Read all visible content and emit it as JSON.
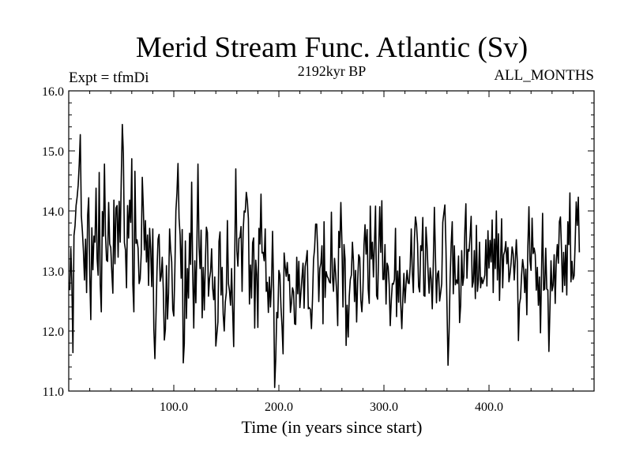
{
  "chart_data": {
    "type": "line",
    "title": "Merid Stream Func. Atlantic (Sv)",
    "subtitle": "2192kyr BP",
    "left_label": "Expt = tfmDi",
    "right_label": "ALL_MONTHS",
    "xlabel": "Time (in years since start)",
    "ylabel": "",
    "xlim": [
      0,
      500
    ],
    "ylim": [
      11.0,
      16.0
    ],
    "x_ticks": [
      100,
      200,
      300,
      400
    ],
    "x_tick_labels": [
      "100.0",
      "200.0",
      "300.0",
      "400.0"
    ],
    "y_ticks": [
      11,
      12,
      13,
      14,
      15,
      16
    ],
    "y_tick_labels": [
      "11.0",
      "12.0",
      "13.0",
      "14.0",
      "15.0",
      "16.0"
    ],
    "series": [
      {
        "name": "Merid Stream Func. Atlantic",
        "color": "#000000",
        "x_start": 1,
        "x_step": 1,
        "values": [
          12.68,
          13.38,
          12.79,
          11.64,
          13.59,
          13.75,
          14.09,
          14.23,
          14.43,
          14.78,
          15.27,
          13.92,
          13.66,
          13.33,
          12.85,
          13.53,
          12.64,
          13.93,
          14.22,
          12.93,
          12.19,
          13.72,
          13.02,
          13.58,
          13.48,
          14.38,
          13.21,
          12.93,
          14.64,
          12.78,
          12.32,
          13.99,
          13.58,
          14.78,
          13.61,
          13.18,
          13.16,
          14.14,
          13.45,
          13.39,
          12.98,
          12.63,
          14.18,
          13.12,
          14.05,
          14.09,
          13.23,
          14.16,
          13.48,
          14.53,
          15.44,
          14.96,
          13.47,
          13.35,
          12.72,
          14.09,
          13.55,
          14.18,
          13.81,
          14.87,
          12.78,
          12.32,
          14.66,
          13.46,
          13.52,
          13.38,
          12.79,
          12.87,
          13.29,
          14.56,
          14.06,
          13.35,
          13.84,
          13.15,
          13.6,
          12.76,
          13.71,
          13.36,
          12.74,
          13.7,
          12.04,
          11.54,
          12.21,
          13.0,
          13.53,
          13.61,
          12.83,
          12.91,
          13.23,
          12.7,
          11.85,
          12.03,
          13.09,
          12.2,
          12.63,
          13.7,
          13.35,
          13.15,
          12.36,
          12.25,
          13.0,
          14.0,
          14.3,
          14.79,
          13.88,
          13.6,
          12.88,
          13.69,
          11.47,
          11.79,
          13.5,
          12.21,
          13.04,
          12.55,
          13.63,
          13.11,
          14.48,
          12.98,
          12.05,
          13.17,
          12.47,
          13.44,
          14.78,
          13.4,
          13.04,
          13.68,
          12.22,
          13.06,
          12.35,
          13.1,
          13.73,
          13.64,
          12.58,
          12.87,
          12.99,
          13.37,
          12.71,
          12.52,
          12.9,
          11.75,
          11.95,
          12.15,
          13.49,
          13.65,
          12.6,
          13.06,
          12.28,
          12.0,
          12.48,
          12.64,
          13.84,
          12.79,
          12.67,
          12.43,
          13.04,
          12.35,
          11.74,
          13.25,
          14.7,
          13.34,
          13.08,
          13.54,
          13.56,
          13.74,
          12.66,
          13.66,
          14.0,
          13.98,
          14.31,
          14.17,
          13.87,
          12.45,
          13.1,
          12.55,
          13.47,
          13.55,
          12.05,
          13.18,
          12.94,
          12.06,
          13.71,
          13.45,
          14.28,
          13.3,
          13.31,
          13.17,
          13.7,
          12.66,
          12.81,
          12.31,
          12.9,
          12.4,
          12.77,
          13.66,
          12.7,
          11.06,
          11.53,
          12.31,
          12.22,
          13.01,
          12.93,
          12.4,
          12.08,
          11.62,
          13.3,
          13.08,
          12.91,
          13.14,
          12.84,
          12.94,
          12.31,
          12.47,
          12.72,
          12.65,
          12.12,
          12.11,
          13.23,
          12.62,
          13.16,
          12.39,
          12.64,
          12.89,
          13.13,
          12.38,
          13.07,
          13.18,
          13.34,
          12.37,
          12.39,
          12.36,
          12.04,
          12.52,
          13.19,
          13.37,
          13.78,
          13.78,
          13.32,
          12.49,
          13.04,
          13.13,
          13.42,
          12.12,
          13.82,
          12.56,
          12.99,
          12.91,
          12.88,
          12.82,
          12.8,
          13.98,
          12.9,
          12.66,
          13.21,
          12.96,
          12.65,
          12.09,
          13.66,
          13.39,
          14.14,
          13.48,
          12.4,
          13.44,
          13.2,
          11.76,
          12.43,
          11.9,
          12.58,
          12.86,
          12.93,
          13.48,
          13.16,
          12.49,
          13.01,
          12.15,
          12.83,
          13.27,
          13.22,
          12.52,
          12.32,
          12.67,
          13.42,
          13.77,
          13.28,
          13.69,
          12.7,
          12.46,
          14.08,
          13.2,
          13.48,
          12.9,
          13.48,
          14.08,
          12.59,
          12.53,
          13.34,
          14.07,
          13.31,
          14.17,
          12.86,
          12.86,
          13.44,
          12.45,
          13.13,
          13.07,
          12.77,
          12.09,
          12.51,
          12.79,
          12.78,
          12.86,
          13.71,
          12.24,
          13.0,
          12.48,
          13.24,
          12.44,
          12.04,
          12.55,
          12.96,
          12.47,
          12.77,
          13.01,
          12.8,
          12.79,
          13.08,
          13.7,
          12.99,
          12.64,
          13.54,
          13.9,
          13.77,
          13.45,
          12.74,
          12.65,
          13.42,
          13.34,
          13.89,
          12.59,
          12.58,
          13.73,
          13.43,
          12.99,
          12.63,
          13.05,
          12.86,
          12.37,
          13.14,
          14.06,
          13.26,
          12.47,
          12.95,
          13.0,
          12.5,
          12.64,
          12.79,
          13.81,
          13.96,
          14.1,
          13.4,
          12.41,
          11.43,
          11.98,
          12.88,
          13.45,
          13.82,
          12.62,
          13.42,
          12.77,
          12.85,
          12.79,
          13.25,
          12.14,
          12.43,
          13.34,
          12.76,
          12.91,
          13.67,
          14.12,
          12.88,
          13.36,
          13.33,
          13.58,
          13.91,
          12.73,
          12.82,
          13.34,
          12.54,
          13.76,
          12.66,
          12.86,
          13.48,
          12.72,
          12.89,
          12.79,
          12.85,
          12.93,
          13.52,
          12.75,
          13.67,
          13.05,
          13.51,
          13.15,
          13.85,
          12.64,
          13.53,
          13.04,
          14.0,
          12.85,
          13.62,
          12.51,
          13.16,
          13.87,
          12.72,
          13.27,
          13.33,
          13.49,
          13.12,
          13.39,
          12.82,
          12.95,
          13.13,
          13.4,
          13.29,
          12.85,
          13.16,
          13.52,
          13.14,
          11.84,
          12.45,
          12.55,
          12.93,
          13.19,
          13.04,
          12.64,
          13.03,
          12.27,
          13.42,
          14.07,
          13.17,
          13.01,
          13.88,
          13.29,
          13.38,
          13.27,
          12.68,
          13.06,
          12.43,
          12.9,
          11.97,
          12.98,
          13.96,
          12.68,
          12.7,
          13.38,
          12.7,
          12.68,
          11.66,
          12.37,
          13.17,
          12.67,
          12.76,
          13.27,
          12.46,
          13.16,
          13.44,
          13.13,
          13.82,
          13.9,
          13.35,
          12.65,
          13.31,
          12.76,
          13.43,
          12.6,
          13.82,
          13.44,
          14.3,
          12.82,
          13.16,
          12.86,
          12.92,
          13.47,
          14.15,
          13.76,
          14.23,
          13.31
        ]
      }
    ]
  }
}
